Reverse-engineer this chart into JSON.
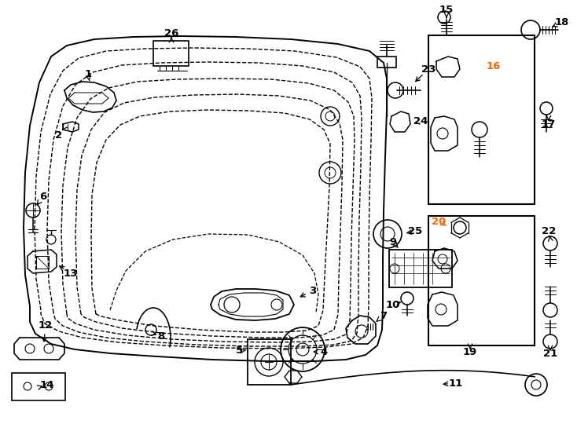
{
  "bg_color": "#ffffff",
  "line_color": "#000000",
  "label_color": "#000000",
  "highlight_color": "#ff6600",
  "fig_width": 7.34,
  "fig_height": 5.4,
  "dpi": 100
}
